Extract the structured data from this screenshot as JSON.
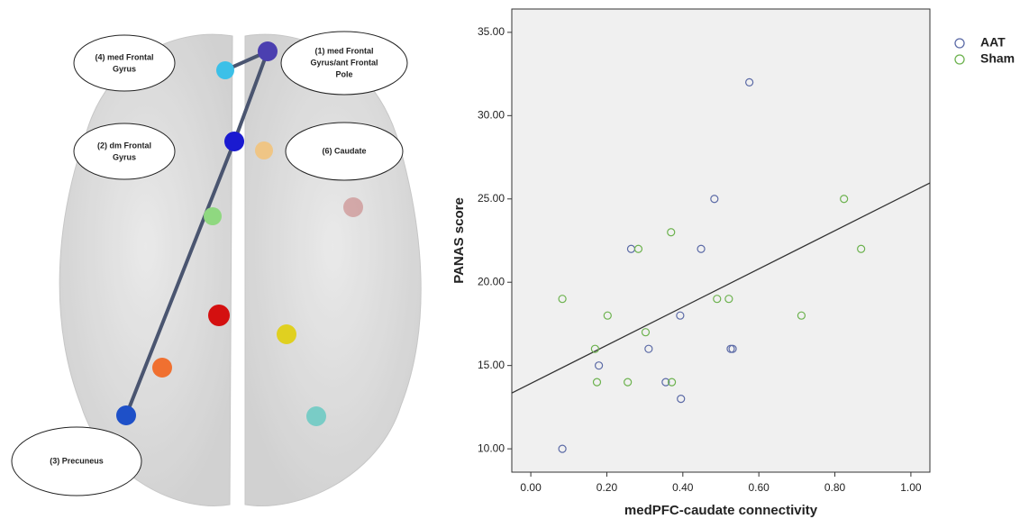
{
  "chart_data": {
    "type": "scatter",
    "x_label": "medPFC-caudate connectivity",
    "y_label": "PANAS score",
    "xlim": [
      -0.05,
      1.05
    ],
    "ylim": [
      8.6,
      36.4
    ],
    "xticks": [
      {
        "value": 0,
        "label": "0.00"
      },
      {
        "value": 0.2,
        "label": "0.20"
      },
      {
        "value": 0.4,
        "label": "0.40"
      },
      {
        "value": 0.6,
        "label": "0.60"
      },
      {
        "value": 0.8,
        "label": "0.80"
      },
      {
        "value": 1,
        "label": "1.00"
      }
    ],
    "yticks": [
      {
        "value": 10,
        "label": "10.00"
      },
      {
        "value": 15,
        "label": "15.00"
      },
      {
        "value": 20,
        "label": "20.00"
      },
      {
        "value": 25,
        "label": "25.00"
      },
      {
        "value": 30,
        "label": "30.00"
      },
      {
        "value": 35,
        "label": "35.00"
      }
    ],
    "legend": "top-right",
    "series": [
      {
        "name": "AAT",
        "color": "#5b6aa6",
        "x": [
          0.575,
          0.483,
          0.264,
          0.448,
          0.393,
          0.31,
          0.526,
          0.531,
          0.179,
          0.355,
          0.395,
          0.083
        ],
        "values": [
          32,
          25,
          22,
          22,
          18,
          16,
          16,
          16,
          15,
          14,
          13,
          10
        ]
      },
      {
        "name": "Sham",
        "color": "#6cb24e",
        "x": [
          0.083,
          0.202,
          0.169,
          0.174,
          0.255,
          0.371,
          0.302,
          0.283,
          0.369,
          0.49,
          0.521,
          0.712,
          0.824,
          0.869
        ],
        "values": [
          19,
          18,
          16,
          14,
          14,
          14,
          17,
          22,
          23,
          19,
          19,
          18,
          25,
          22
        ]
      }
    ],
    "fit_line": {
      "x": [
        -0.05,
        1.05
      ],
      "values": [
        13.35,
        25.96
      ]
    }
  },
  "diagram": {
    "labels": [
      {
        "lines": [
          "(4) med Frontal",
          "Gyrus"
        ]
      },
      {
        "lines": [
          "(1) med Frontal",
          "Gyrus/ant Frontal",
          "Pole"
        ]
      },
      {
        "lines": [
          "(2) dm Frontal",
          "Gyrus"
        ]
      },
      {
        "lines": [
          "(6) Caudate"
        ]
      },
      {
        "lines": [
          "(3) Precuneus"
        ]
      }
    ]
  }
}
